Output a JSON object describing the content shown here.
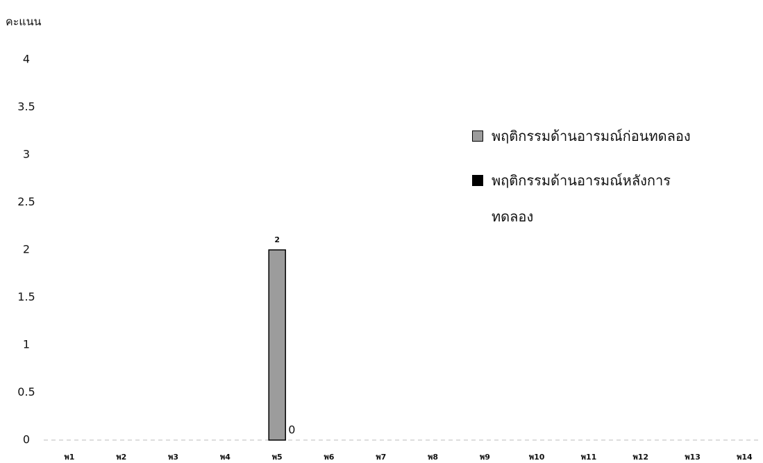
{
  "chart_data": {
    "type": "bar",
    "y_label": "คะแนน",
    "categories": [
      "พ1",
      "พ2",
      "พ3",
      "พ4",
      "พ5",
      "พ6",
      "พ7",
      "พ8",
      "พ9",
      "พ10",
      "พ11",
      "พ12",
      "พ13",
      "พ14"
    ],
    "series": [
      {
        "name": "พฤติกรรมด้านอารมณ์ก่อนทดลอง",
        "color": "#9c9c9c",
        "values": [
          null,
          null,
          null,
          null,
          2,
          null,
          null,
          null,
          null,
          null,
          null,
          null,
          null,
          null
        ]
      },
      {
        "name": "พฤติกรรมด้านอารมณ์หลังการทดลอง",
        "color": "#000000",
        "values": [
          null,
          null,
          null,
          null,
          0,
          null,
          null,
          null,
          null,
          null,
          null,
          null,
          null,
          null
        ]
      }
    ],
    "ylim": [
      0,
      4
    ],
    "yticks": [
      0,
      0.5,
      1,
      1.5,
      2,
      2.5,
      3,
      3.5,
      4
    ],
    "grid": false
  }
}
